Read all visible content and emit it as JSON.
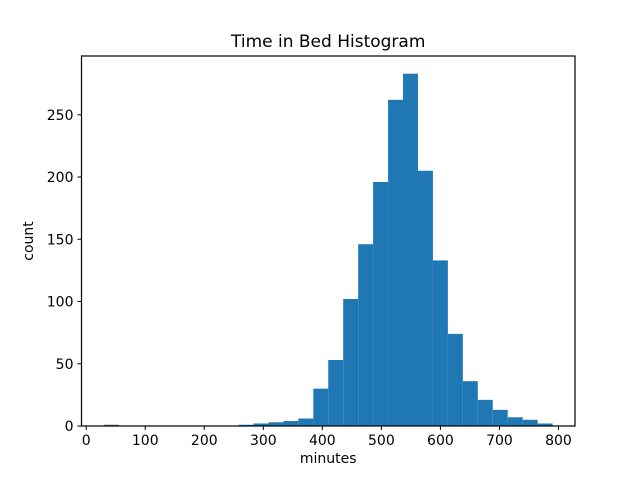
{
  "figure": {
    "title": "Time in Bed Histogram",
    "xlabel": "minutes",
    "ylabel": "count",
    "background_color": "#ffffff",
    "spine_color": "#000000",
    "x_ticks": [
      0,
      100,
      200,
      300,
      400,
      500,
      600,
      700,
      800
    ],
    "y_ticks": [
      0,
      50,
      100,
      150,
      200,
      250
    ]
  },
  "chart_data": {
    "type": "bar",
    "subtype": "histogram",
    "title": "Time in Bed Histogram",
    "xlabel": "minutes",
    "ylabel": "count",
    "bar_color": "#1f77b4",
    "grid": false,
    "legend": false,
    "xlim": [
      -8,
      828
    ],
    "ylim": [
      0,
      297.2
    ],
    "bin_edges": [
      30,
      55.33,
      80.67,
      106,
      131.33,
      156.67,
      182,
      207.33,
      232.67,
      258,
      283.33,
      308.67,
      334,
      359.33,
      384.67,
      410,
      435.33,
      460.67,
      486,
      511.33,
      536.67,
      562,
      587.33,
      612.67,
      638,
      663.33,
      688.67,
      714,
      739.33,
      764.67,
      790
    ],
    "counts": [
      1,
      0,
      0,
      0,
      0,
      0,
      0,
      0,
      0,
      1,
      2,
      3,
      4,
      6,
      30,
      53,
      102,
      146,
      196,
      262,
      283,
      205,
      133,
      74,
      36,
      21,
      13,
      7,
      5,
      2
    ]
  }
}
